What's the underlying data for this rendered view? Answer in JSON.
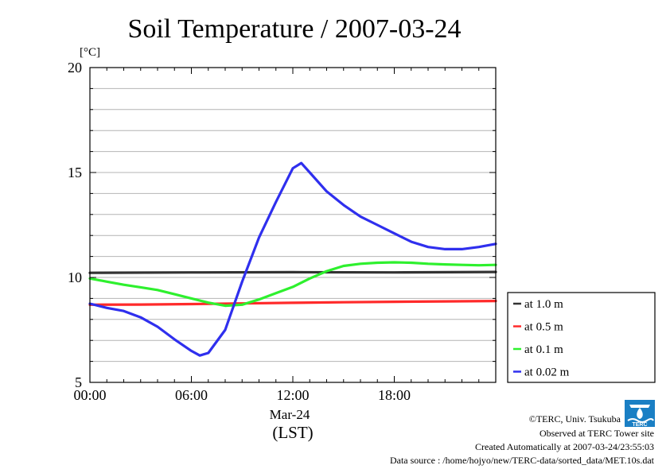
{
  "chart_data": {
    "type": "line",
    "title": "Soil Temperature / 2007-03-24",
    "ylabel": "[°C]",
    "xlabel_date": "Mar-24",
    "xlabel_tz": "(LST)",
    "x_unit": "hour of day",
    "xlim": [
      0,
      24
    ],
    "ylim": [
      5,
      20
    ],
    "xticks": [
      {
        "value": 0,
        "label": "00:00"
      },
      {
        "value": 6,
        "label": "06:00"
      },
      {
        "value": 12,
        "label": "12:00"
      },
      {
        "value": 18,
        "label": "18:00"
      }
    ],
    "yticks": [
      {
        "value": 5,
        "label": "5"
      },
      {
        "value": 10,
        "label": "10"
      },
      {
        "value": 15,
        "label": "15"
      },
      {
        "value": 20,
        "label": "20"
      }
    ],
    "grid": true,
    "legend_position": "right",
    "series": [
      {
        "name": "at 1.0 m",
        "color": "#333333",
        "points": [
          [
            0,
            10.22
          ],
          [
            6,
            10.24
          ],
          [
            12,
            10.25
          ],
          [
            18,
            10.24
          ],
          [
            24,
            10.26
          ]
        ]
      },
      {
        "name": "at 0.5 m",
        "color": "#ff2a2a",
        "points": [
          [
            0,
            8.7
          ],
          [
            3,
            8.71
          ],
          [
            6,
            8.73
          ],
          [
            9,
            8.76
          ],
          [
            12,
            8.79
          ],
          [
            15,
            8.82
          ],
          [
            18,
            8.84
          ],
          [
            21,
            8.86
          ],
          [
            24,
            8.88
          ]
        ]
      },
      {
        "name": "at 0.1 m",
        "color": "#2ef02e",
        "points": [
          [
            0,
            9.95
          ],
          [
            1,
            9.8
          ],
          [
            2,
            9.65
          ],
          [
            3,
            9.53
          ],
          [
            4,
            9.4
          ],
          [
            5,
            9.2
          ],
          [
            6,
            9.0
          ],
          [
            7,
            8.8
          ],
          [
            8,
            8.65
          ],
          [
            9,
            8.7
          ],
          [
            10,
            8.95
          ],
          [
            11,
            9.25
          ],
          [
            12,
            9.55
          ],
          [
            13,
            9.95
          ],
          [
            14,
            10.3
          ],
          [
            15,
            10.55
          ],
          [
            16,
            10.65
          ],
          [
            17,
            10.7
          ],
          [
            18,
            10.72
          ],
          [
            19,
            10.7
          ],
          [
            20,
            10.65
          ],
          [
            21,
            10.62
          ],
          [
            22,
            10.6
          ],
          [
            23,
            10.58
          ],
          [
            24,
            10.6
          ]
        ]
      },
      {
        "name": "at 0.02 m",
        "color": "#2f2fee",
        "points": [
          [
            0,
            8.75
          ],
          [
            1,
            8.55
          ],
          [
            2,
            8.4
          ],
          [
            3,
            8.1
          ],
          [
            4,
            7.65
          ],
          [
            5,
            7.05
          ],
          [
            6,
            6.5
          ],
          [
            6.5,
            6.28
          ],
          [
            7,
            6.4
          ],
          [
            8,
            7.5
          ],
          [
            9,
            9.8
          ],
          [
            10,
            11.9
          ],
          [
            11,
            13.6
          ],
          [
            12,
            15.2
          ],
          [
            12.5,
            15.45
          ],
          [
            13,
            15.0
          ],
          [
            14,
            14.1
          ],
          [
            15,
            13.45
          ],
          [
            16,
            12.9
          ],
          [
            17,
            12.5
          ],
          [
            18,
            12.1
          ],
          [
            19,
            11.7
          ],
          [
            20,
            11.45
          ],
          [
            21,
            11.35
          ],
          [
            22,
            11.35
          ],
          [
            23,
            11.45
          ],
          [
            24,
            11.6
          ]
        ]
      }
    ]
  },
  "footer": {
    "copyright": "©TERC, Univ. Tsukuba",
    "observed": "Observed at TERC Tower site",
    "created": "Created Automatically at 2007-03-24/23:55:03",
    "source": "Data source : /home/hojyo/new/TERC-data/sorted_data/MET.10s.dat"
  },
  "logo": {
    "text": "TERC",
    "color": "#1a7fc4"
  }
}
